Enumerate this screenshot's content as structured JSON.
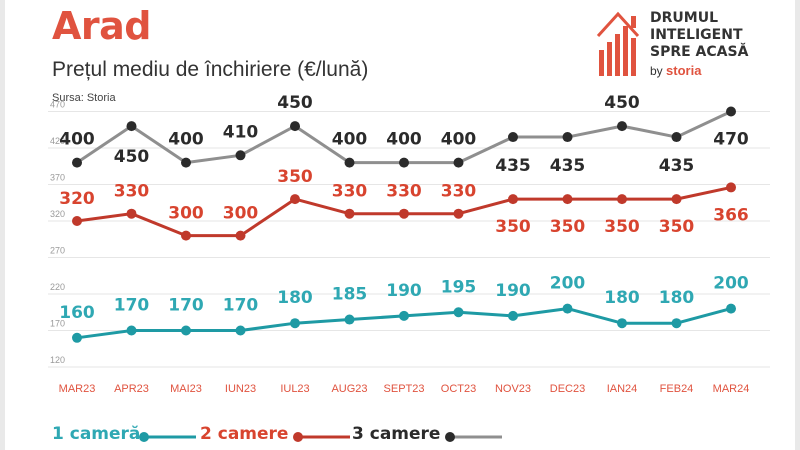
{
  "header": {
    "title": "Arad",
    "subtitle": "Prețul mediu de închiriere (€/lună)",
    "source": "Sursa: Storia"
  },
  "logo": {
    "lines": [
      "DRUMUL",
      "INTELIGENT",
      "SPRE ACASĂ"
    ],
    "by": "by",
    "brand": "storia",
    "colors": {
      "orange": "#e0533f",
      "gray": "#333333"
    }
  },
  "chart_data": {
    "type": "line",
    "categories": [
      "MAR23",
      "APR23",
      "MAI23",
      "IUN23",
      "IUL23",
      "AUG23",
      "SEPT23",
      "OCT23",
      "NOV23",
      "DEC23",
      "IAN24",
      "FEB24",
      "MAR24"
    ],
    "y_ticks": [
      120,
      170,
      220,
      270,
      320,
      370,
      420,
      470
    ],
    "ylim": [
      120,
      475
    ],
    "grid": true,
    "legend_position": "bottom",
    "series": [
      {
        "name": "1 cameră",
        "color": "#1e9aa4",
        "label_color": "#2fa8b3",
        "values": [
          160,
          170,
          170,
          170,
          180,
          185,
          190,
          195,
          190,
          200,
          180,
          180,
          200
        ],
        "labels": [
          "160",
          "170",
          "170",
          "170",
          "180",
          "185",
          "190",
          "195",
          "190",
          "200",
          "180",
          "180",
          "200"
        ]
      },
      {
        "name": "2 camere",
        "color": "#c0392b",
        "label_color": "#d8442f",
        "values": [
          320,
          330,
          300,
          300,
          350,
          330,
          330,
          330,
          350,
          350,
          350,
          350,
          366
        ],
        "labels": [
          "320",
          "330",
          "300",
          "300",
          "350",
          "330",
          "330",
          "330",
          "350",
          "350",
          "350",
          "350",
          "366"
        ]
      },
      {
        "name": "3 camere",
        "color": "#8f8f8f",
        "label_color": "#2b2b2b",
        "values": [
          400,
          450,
          400,
          410,
          450,
          400,
          400,
          400,
          435,
          435,
          450,
          435,
          470
        ],
        "labels": [
          "400",
          "450",
          "400",
          "410",
          "450",
          "400",
          "400",
          "400",
          "435",
          "435",
          "450",
          "435",
          "470"
        ]
      }
    ]
  }
}
